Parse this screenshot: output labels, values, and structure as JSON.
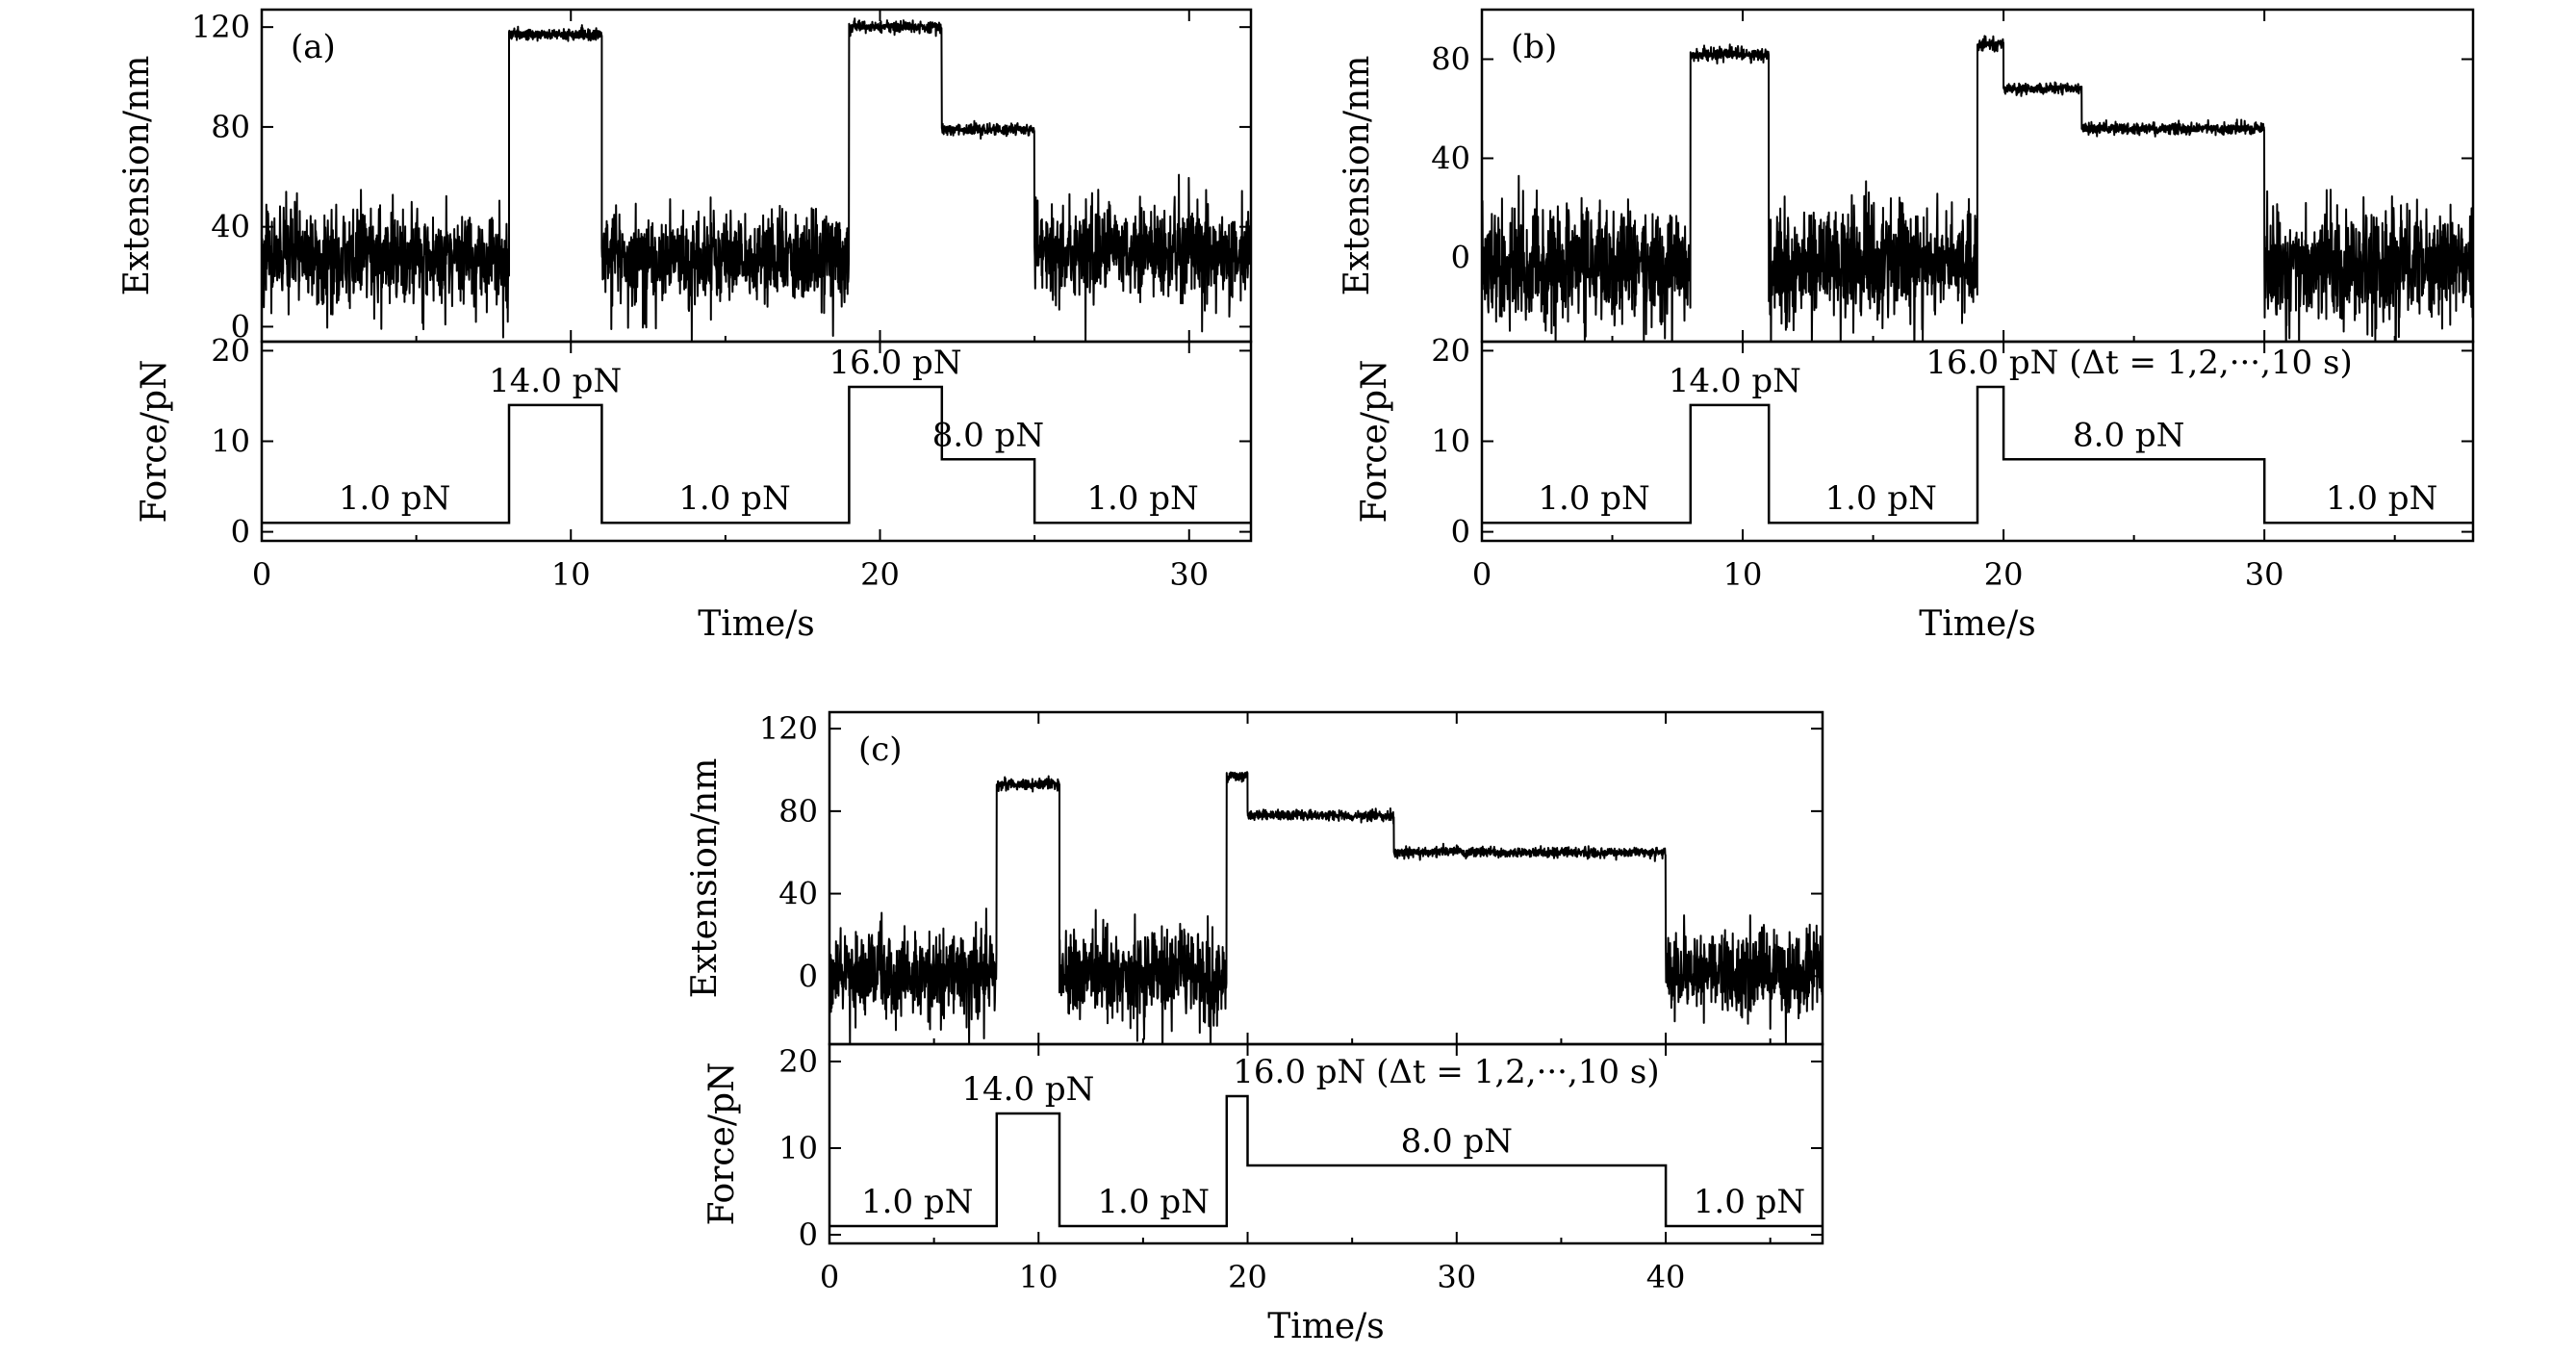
{
  "chart_data": [
    {
      "type": "line",
      "panel_label": "(a)",
      "xlabel": "Time/s",
      "xlim": [
        0,
        32
      ],
      "xticks": [
        0,
        10,
        20,
        30
      ],
      "extension": {
        "ylabel": "Extension/nm",
        "ylim": [
          -6,
          127
        ],
        "yticks": [
          0,
          40,
          80,
          120
        ],
        "baseline_noise": 9,
        "segments": [
          {
            "t0": 0,
            "t1": 8,
            "level": 28,
            "noisy": true
          },
          {
            "t0": 8,
            "t1": 11,
            "level": 117,
            "noisy": false
          },
          {
            "t0": 11,
            "t1": 19,
            "level": 28,
            "noisy": true
          },
          {
            "t0": 19,
            "t1": 22,
            "level": 120,
            "noisy": false
          },
          {
            "t0": 22,
            "t1": 25,
            "level": 79,
            "noisy": false
          },
          {
            "t0": 25,
            "t1": 32,
            "level": 30,
            "noisy": true
          }
        ]
      },
      "force": {
        "ylabel": "Force/pN",
        "ylim": [
          -1,
          21
        ],
        "yticks": [
          0,
          10,
          20
        ],
        "steps": [
          {
            "t0": 0,
            "t1": 8,
            "value": 1.0
          },
          {
            "t0": 8,
            "t1": 11,
            "value": 14.0
          },
          {
            "t0": 11,
            "t1": 19,
            "value": 1.0
          },
          {
            "t0": 19,
            "t1": 22,
            "value": 16.0
          },
          {
            "t0": 22,
            "t1": 25,
            "value": 8.0
          },
          {
            "t0": 25,
            "t1": 32,
            "value": 1.0
          }
        ],
        "annotations": [
          {
            "text": "1.0 pN",
            "t": 4.3,
            "f": 1.0
          },
          {
            "text": "14.0 pN",
            "t": 9.5,
            "f": 14.0
          },
          {
            "text": "1.0 pN",
            "t": 15.3,
            "f": 1.0
          },
          {
            "text": "16.0 pN",
            "t": 20.5,
            "f": 16.0
          },
          {
            "text": "8.0 pN",
            "t": 23.5,
            "f": 8.0
          },
          {
            "text": "1.0 pN",
            "t": 28.5,
            "f": 1.0
          }
        ]
      }
    },
    {
      "type": "line",
      "panel_label": "(b)",
      "xlabel": "Time/s",
      "xlim": [
        0,
        38
      ],
      "xticks": [
        0,
        10,
        20,
        30
      ],
      "extension": {
        "ylabel": "Extension/nm",
        "ylim": [
          -34,
          100
        ],
        "yticks": [
          0,
          40,
          80
        ],
        "baseline_noise": 11,
        "segments": [
          {
            "t0": 0,
            "t1": 8,
            "level": -3,
            "noisy": true
          },
          {
            "t0": 8,
            "t1": 11,
            "level": 82,
            "noisy": false
          },
          {
            "t0": 11,
            "t1": 19,
            "level": -3,
            "noisy": true
          },
          {
            "t0": 19,
            "t1": 20,
            "level": 86,
            "noisy": false
          },
          {
            "t0": 20,
            "t1": 23,
            "level": 68,
            "noisy": false
          },
          {
            "t0": 23,
            "t1": 30,
            "level": 52,
            "noisy": false
          },
          {
            "t0": 30,
            "t1": 38,
            "level": -3,
            "noisy": true
          }
        ]
      },
      "force": {
        "ylabel": "Force/pN",
        "ylim": [
          -1,
          21
        ],
        "yticks": [
          0,
          10,
          20
        ],
        "steps": [
          {
            "t0": 0,
            "t1": 8,
            "value": 1.0
          },
          {
            "t0": 8,
            "t1": 11,
            "value": 14.0
          },
          {
            "t0": 11,
            "t1": 19,
            "value": 1.0
          },
          {
            "t0": 19,
            "t1": 20,
            "value": 16.0
          },
          {
            "t0": 20,
            "t1": 30,
            "value": 8.0
          },
          {
            "t0": 30,
            "t1": 38,
            "value": 1.0
          }
        ],
        "annotations": [
          {
            "text": "1.0 pN",
            "t": 4.3,
            "f": 1.0
          },
          {
            "text": "14.0 pN",
            "t": 9.7,
            "f": 14.0
          },
          {
            "text": "1.0 pN",
            "t": 15.3,
            "f": 1.0
          },
          {
            "text": "16.0 pN (Δt = 1,2,···,10 s)",
            "t": 25.2,
            "f": 16.0
          },
          {
            "text": "8.0 pN",
            "t": 24.8,
            "f": 8.0
          },
          {
            "text": "1.0 pN",
            "t": 34.5,
            "f": 1.0
          }
        ]
      }
    },
    {
      "type": "line",
      "panel_label": "(c)",
      "xlabel": "Time/s",
      "xlim": [
        0,
        47.5
      ],
      "xticks": [
        0,
        10,
        20,
        30,
        40
      ],
      "extension": {
        "ylabel": "Extension/nm",
        "ylim": [
          -33,
          128
        ],
        "yticks": [
          0,
          40,
          80,
          120
        ],
        "baseline_noise": 10,
        "segments": [
          {
            "t0": 0,
            "t1": 8,
            "level": 1,
            "noisy": true
          },
          {
            "t0": 8,
            "t1": 11,
            "level": 93,
            "noisy": false
          },
          {
            "t0": 11,
            "t1": 19,
            "level": 1,
            "noisy": true
          },
          {
            "t0": 19,
            "t1": 20,
            "level": 97,
            "noisy": false
          },
          {
            "t0": 20,
            "t1": 27,
            "level": 78,
            "noisy": false
          },
          {
            "t0": 27,
            "t1": 40,
            "level": 60,
            "noisy": false
          },
          {
            "t0": 40,
            "t1": 47.5,
            "level": 1,
            "noisy": true
          }
        ]
      },
      "force": {
        "ylabel": "Force/pN",
        "ylim": [
          -1,
          22
        ],
        "yticks": [
          0,
          10,
          20
        ],
        "steps": [
          {
            "t0": 0,
            "t1": 8,
            "value": 1.0
          },
          {
            "t0": 8,
            "t1": 11,
            "value": 14.0
          },
          {
            "t0": 11,
            "t1": 19,
            "value": 1.0
          },
          {
            "t0": 19,
            "t1": 20,
            "value": 16.0
          },
          {
            "t0": 20,
            "t1": 40,
            "value": 8.0
          },
          {
            "t0": 40,
            "t1": 47.5,
            "value": 1.0
          }
        ],
        "annotations": [
          {
            "text": "1.0 pN",
            "t": 4.2,
            "f": 1.0
          },
          {
            "text": "14.0 pN",
            "t": 9.5,
            "f": 14.0
          },
          {
            "text": "1.0 pN",
            "t": 15.5,
            "f": 1.0
          },
          {
            "text": "16.0 pN (Δt = 1,2,···,10 s)",
            "t": 29.5,
            "f": 16.0
          },
          {
            "text": "8.0 pN",
            "t": 30.0,
            "f": 8.0
          },
          {
            "text": "1.0 pN",
            "t": 44.0,
            "f": 1.0
          }
        ]
      }
    }
  ]
}
